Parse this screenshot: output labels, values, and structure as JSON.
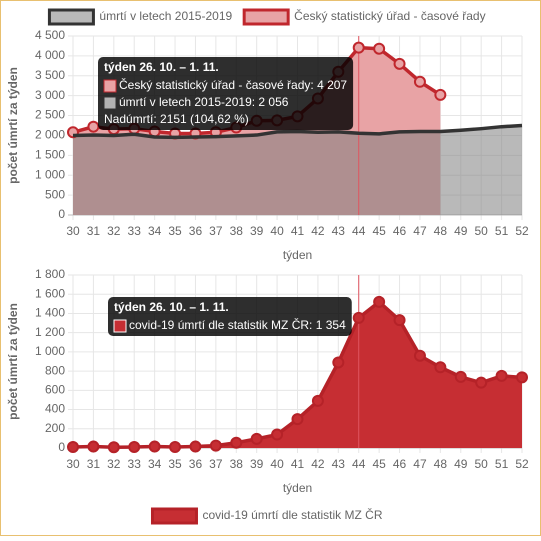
{
  "chart_data": [
    {
      "type": "line",
      "legend": "top",
      "ylabel": "počet úmrtí za týden",
      "xlabel": "týden",
      "categories": [
        "30",
        "31",
        "32",
        "33",
        "34",
        "35",
        "36",
        "37",
        "38",
        "39",
        "40",
        "41",
        "42",
        "43",
        "44",
        "45",
        "46",
        "47",
        "48",
        "49",
        "50",
        "51",
        "52"
      ],
      "ylim": [
        0,
        4500
      ],
      "yticks": [
        0,
        500,
        {
          "value": 1000,
          "label": "1 000"
        },
        {
          "value": 1500,
          "label": "1 500"
        },
        {
          "value": 2000,
          "label": "2 000"
        },
        {
          "value": 2500,
          "label": "2 500"
        },
        {
          "value": 3000,
          "label": "3 000"
        },
        {
          "value": 3500,
          "label": "3 500"
        },
        {
          "value": 4000,
          "label": "4 000"
        },
        {
          "value": 4500,
          "label": "4 500"
        }
      ],
      "grid": true,
      "series": [
        {
          "name": "úmrtí v letech 2015-2019",
          "color": "#333333",
          "fill": "rgba(128,128,128,0.55)",
          "points": false,
          "values": [
            2000,
            2010,
            2000,
            2030,
            1960,
            1950,
            1960,
            1970,
            1990,
            2010,
            2090,
            2100,
            2080,
            2090,
            2056,
            2040,
            2090,
            2100,
            2100,
            2130,
            2170,
            2220,
            2250
          ]
        },
        {
          "name": "Český statistický úřad - časové řady",
          "color": "#c0272d",
          "fill": "#e8a3a5",
          "points": true,
          "values": [
            2080,
            2220,
            2160,
            2170,
            2100,
            2050,
            2050,
            2080,
            2200,
            2370,
            2380,
            2480,
            2930,
            3600,
            4207,
            4180,
            3800,
            3350,
            3020,
            null,
            null,
            null,
            null
          ]
        }
      ],
      "tooltip": {
        "category": "44",
        "title": "týden 26. 10. – 1. 11.",
        "items": [
          {
            "text": "Český statistický úřad - časové řady: 4 207",
            "color": "#e8a3a5",
            "border": "#c0272d"
          },
          {
            "text": "úmrtí v letech 2015-2019: 2 056",
            "color": "#b3b3b3",
            "border": "#333333"
          },
          {
            "text": "Nadúmrtí: 2151 (104,62 %)"
          }
        ]
      }
    },
    {
      "type": "line",
      "legend": "bottom",
      "ylabel": "počet úmrtí za týden",
      "xlabel": "týden",
      "categories": [
        "30",
        "31",
        "32",
        "33",
        "34",
        "35",
        "36",
        "37",
        "38",
        "39",
        "40",
        "41",
        "42",
        "43",
        "44",
        "45",
        "46",
        "47",
        "48",
        "49",
        "50",
        "51",
        "52"
      ],
      "ylim": [
        0,
        1800
      ],
      "yticks": [
        0,
        200,
        400,
        600,
        800,
        {
          "value": 1000,
          "label": "1 000"
        },
        {
          "value": 1200,
          "label": "1 200"
        },
        {
          "value": 1400,
          "label": "1 400"
        },
        {
          "value": 1600,
          "label": "1 600"
        },
        {
          "value": 1800,
          "label": "1 800"
        }
      ],
      "grid": true,
      "series": [
        {
          "name": "covid-19 úmrtí dle statistik MZ ČR",
          "color": "#b52228",
          "fill": "#c62e33",
          "points": true,
          "values": [
            10,
            15,
            8,
            10,
            15,
            10,
            15,
            25,
            55,
            95,
            140,
            300,
            490,
            890,
            1354,
            1520,
            1330,
            960,
            840,
            740,
            680,
            750,
            735
          ]
        }
      ],
      "tooltip": {
        "category": "44",
        "title": "týden 26. 10. – 1. 11.",
        "items": [
          {
            "text": "covid-19 úmrtí dle statistik MZ ČR: 1 354",
            "color": "#c62e33",
            "border": "#ffffff"
          }
        ]
      }
    }
  ]
}
